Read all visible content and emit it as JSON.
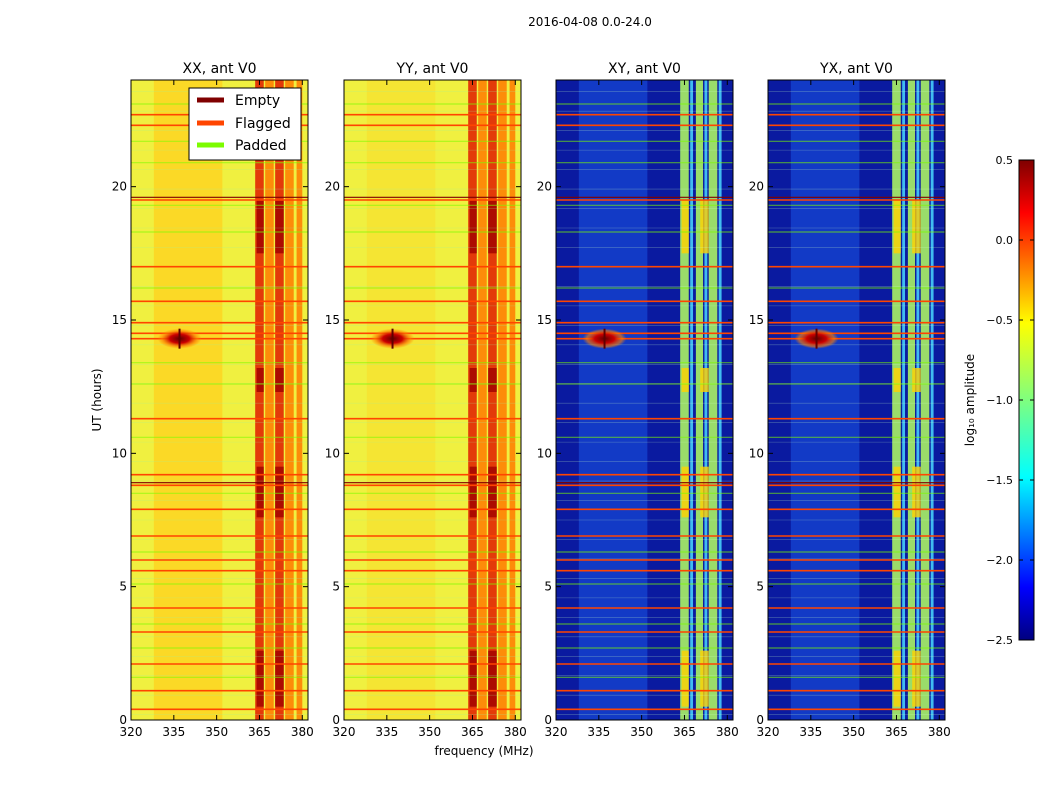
{
  "chart_data": {
    "type": "heatmap",
    "suptitle": "2016-04-08 0.0-24.0",
    "xlabel": "frequency (MHz)",
    "ylabel": "UT (hours)",
    "xlim": [
      320,
      382
    ],
    "ylim": [
      0,
      24
    ],
    "xticks": [
      320,
      335,
      350,
      365,
      380
    ],
    "yticks": [
      0,
      5,
      10,
      15,
      20
    ],
    "panels": [
      {
        "title": "XX, ant V0",
        "kind": "auto"
      },
      {
        "title": "YY, ant V0",
        "kind": "auto"
      },
      {
        "title": "XY, ant V0",
        "kind": "cross"
      },
      {
        "title": "YX, ant V0",
        "kind": "cross"
      }
    ],
    "legend": {
      "position": "top-right of first panel",
      "entries": [
        {
          "label": "Empty",
          "color": "#800000"
        },
        {
          "label": "Flagged",
          "color": "#ff4500"
        },
        {
          "label": "Padded",
          "color": "#7cfc00"
        }
      ]
    },
    "colorbar": {
      "label": "log₁₀ amplitude",
      "range": [
        -2.5,
        0.5
      ],
      "ticks": [
        "0.5",
        "0.0",
        "−0.5",
        "−1.0",
        "−1.5",
        "−2.0",
        "−2.5"
      ],
      "colormap": "jet"
    },
    "flagged_hours": [
      0.4,
      1.1,
      2.1,
      3.3,
      4.2,
      5.6,
      6.0,
      6.9,
      7.9,
      8.8,
      9.2,
      11.3,
      14.3,
      14.5,
      14.9,
      15.7,
      17.0,
      19.5,
      22.3,
      22.7
    ],
    "padded_hours": [
      1.6,
      2.7,
      3.6,
      5.1,
      6.3,
      8.5,
      10.6,
      12.6,
      13.4,
      16.2,
      18.3,
      19.3,
      20.9,
      21.7,
      23.1
    ],
    "empty_hours": [
      8.9,
      19.6
    ],
    "rfi_source": {
      "freq_mhz": 337,
      "hour": 14.3
    }
  }
}
